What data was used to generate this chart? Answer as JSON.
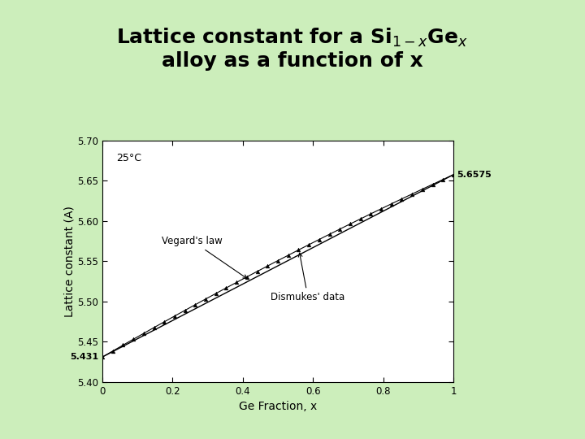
{
  "xlabel": "Ge Fraction, x",
  "ylabel": "Lattice constant (A)",
  "xlim": [
    0,
    1
  ],
  "ylim": [
    5.4,
    5.7
  ],
  "yticks": [
    5.4,
    5.45,
    5.5,
    5.55,
    5.6,
    5.65,
    5.7
  ],
  "xticks": [
    0,
    0.2,
    0.4,
    0.6,
    0.8,
    1
  ],
  "si_lattice": 5.431,
  "ge_lattice": 5.6575,
  "dismukes_bowing": 0.026,
  "annotation_temp": "25°C",
  "annotation_vegard": "Vegard's law",
  "annotation_dismukes": "Dismukes' data",
  "label_si": "5.431",
  "label_ge": "5.6575",
  "bg_color": "#cceebb",
  "plot_bg": "#ffffff",
  "line_color": "#000000",
  "title_color": "#000000",
  "title_fontsize": 18,
  "axis_fontsize": 10,
  "n_markers": 35
}
